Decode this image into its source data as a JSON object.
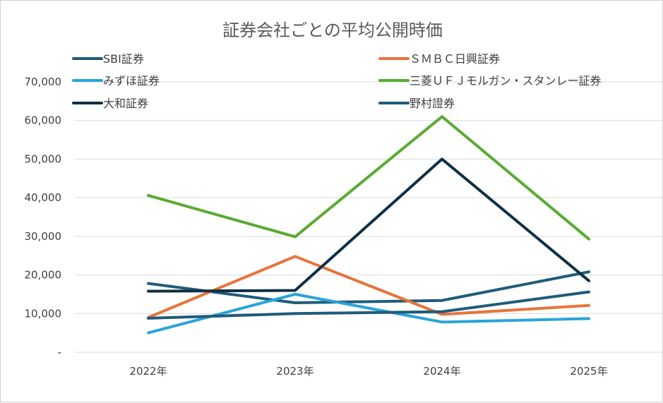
{
  "chart_data": {
    "type": "line",
    "title": "証券会社ごとの平均公開時価",
    "xlabel": "",
    "ylabel": "",
    "categories": [
      "2022年",
      "2023年",
      "2024年",
      "2025年"
    ],
    "ylim": [
      0,
      70000
    ],
    "y_ticks": [
      {
        "value": 0,
        "label": "-"
      },
      {
        "value": 10000,
        "label": "10,000"
      },
      {
        "value": 20000,
        "label": "20,000"
      },
      {
        "value": 30000,
        "label": "30,000"
      },
      {
        "value": 40000,
        "label": "40,000"
      },
      {
        "value": 50000,
        "label": "50,000"
      },
      {
        "value": 60000,
        "label": "60,000"
      },
      {
        "value": 70000,
        "label": "70,000"
      }
    ],
    "grid": "horizontal",
    "legend": "top",
    "series": [
      {
        "name": "SBI証券",
        "color": "#1f5c7a",
        "values": [
          17800,
          12800,
          13400,
          20800
        ]
      },
      {
        "name": "ＳＭＢＣ日興証券",
        "color": "#e8733a",
        "values": [
          9000,
          24800,
          9800,
          12100
        ]
      },
      {
        "name": "みずほ証券",
        "color": "#2aa4d8",
        "values": [
          5000,
          15000,
          7800,
          8700
        ]
      },
      {
        "name": "三菱ＵＦＪモルガン・スタンレー証券",
        "color": "#5aaa32",
        "values": [
          40600,
          29900,
          61000,
          29300
        ]
      },
      {
        "name": "大和証券",
        "color": "#0f3045",
        "values": [
          15800,
          16000,
          50000,
          18500
        ]
      },
      {
        "name": "野村證券",
        "color": "#1f5c7a",
        "values": [
          8800,
          10000,
          10500,
          15600
        ]
      }
    ]
  }
}
